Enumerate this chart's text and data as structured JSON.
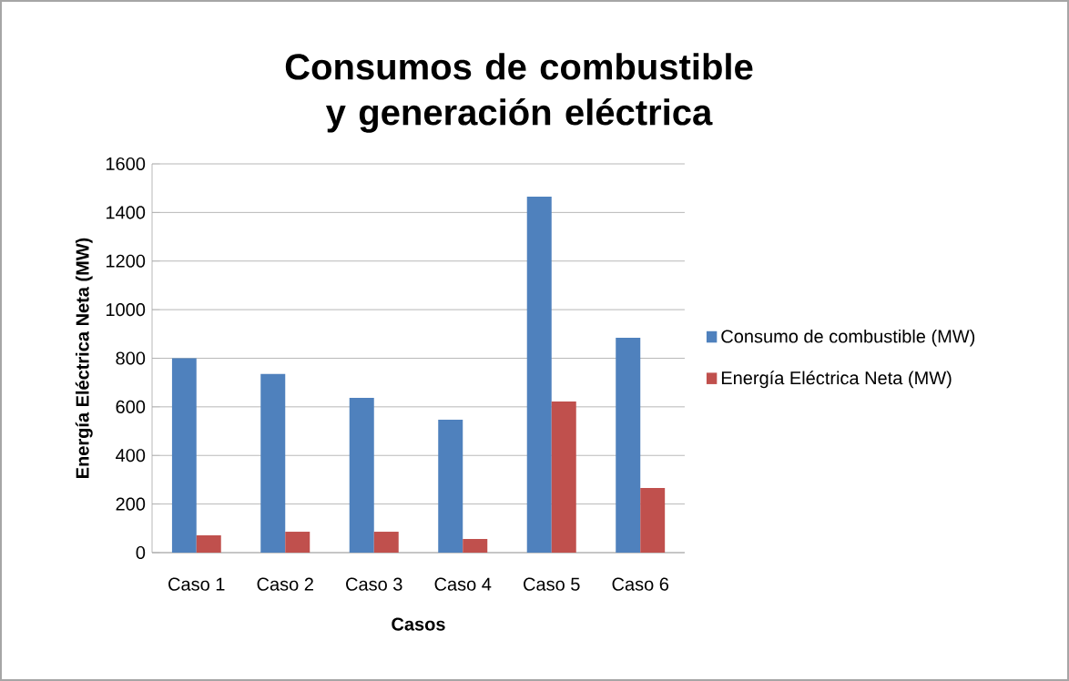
{
  "chart_data": {
    "type": "bar",
    "title": "Consumos de combustible y generación eléctrica",
    "xlabel": "Casos",
    "ylabel": "Energía Eléctrica Neta (MW)",
    "categories": [
      "Caso 1",
      "Caso 2",
      "Caso 3",
      "Caso 4",
      "Caso 5",
      "Caso 6"
    ],
    "series": [
      {
        "name": "Consumo de combustible (MW)",
        "color": "#4f81bd",
        "values": [
          800,
          735,
          637,
          547,
          1465,
          884
        ]
      },
      {
        "name": "Energía Eléctrica Neta (MW)",
        "color": "#c0504d",
        "values": [
          71,
          86,
          86,
          56,
          622,
          266
        ]
      }
    ],
    "ylim": [
      0,
      1600
    ],
    "yticks": [
      0,
      200,
      400,
      600,
      800,
      1000,
      1200,
      1400,
      1600
    ],
    "grid": "y",
    "legend": "right"
  }
}
